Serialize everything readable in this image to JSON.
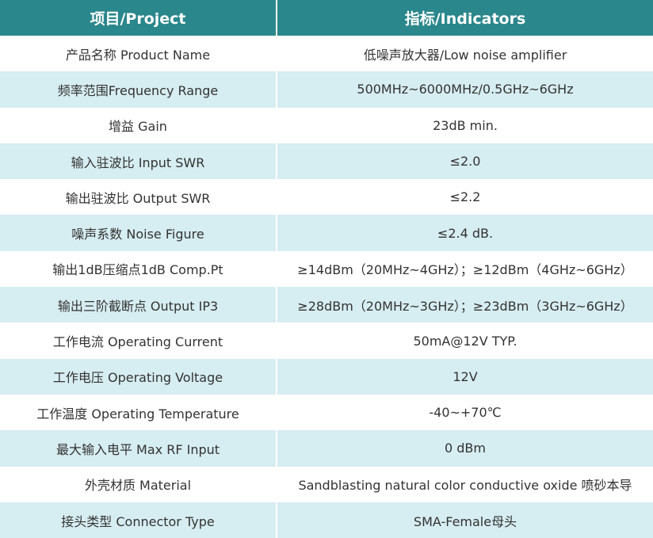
{
  "table": {
    "header": [
      "项目/Project",
      "指标/Indicators"
    ],
    "rows": [
      [
        "产品名称 Product Name",
        "低噪声放大器/Low noise amplifier"
      ],
      [
        "频率范围Frequency Range",
        "500MHz~6000MHz/0.5GHz~6GHz"
      ],
      [
        "增益 Gain",
        "23dB min."
      ],
      [
        "输入驻波比 Input SWR",
        "≤2.0"
      ],
      [
        "输出驻波比 Output SWR",
        "≤2.2"
      ],
      [
        "噪声系数 Noise Figure",
        "≤2.4 dB."
      ],
      [
        "输出1dB压缩点1dB Comp.Pt",
        "≥14dBm（20MHz~4GHz）；≥12dBm（4GHz~6GHz）"
      ],
      [
        "输出三阶截断点 Output IP3",
        "≥28dBm（20MHz~3GHz）；≥23dBm（3GHz~6GHz）"
      ],
      [
        "工作电流 Operating Current",
        "50mA@12V TYP."
      ],
      [
        "工作电压 Operating Voltage",
        "12V"
      ],
      [
        "工作温度 Operating Temperature",
        "-40~+70℃"
      ],
      [
        "最大输入电平 Max RF Input",
        "0 dBm"
      ],
      [
        "外壳材质 Material",
        "Sandblasting natural color conductive oxide 喷砂本导"
      ],
      [
        "接头类型 Connector Type",
        "SMA-Female母头"
      ]
    ]
  }
}
